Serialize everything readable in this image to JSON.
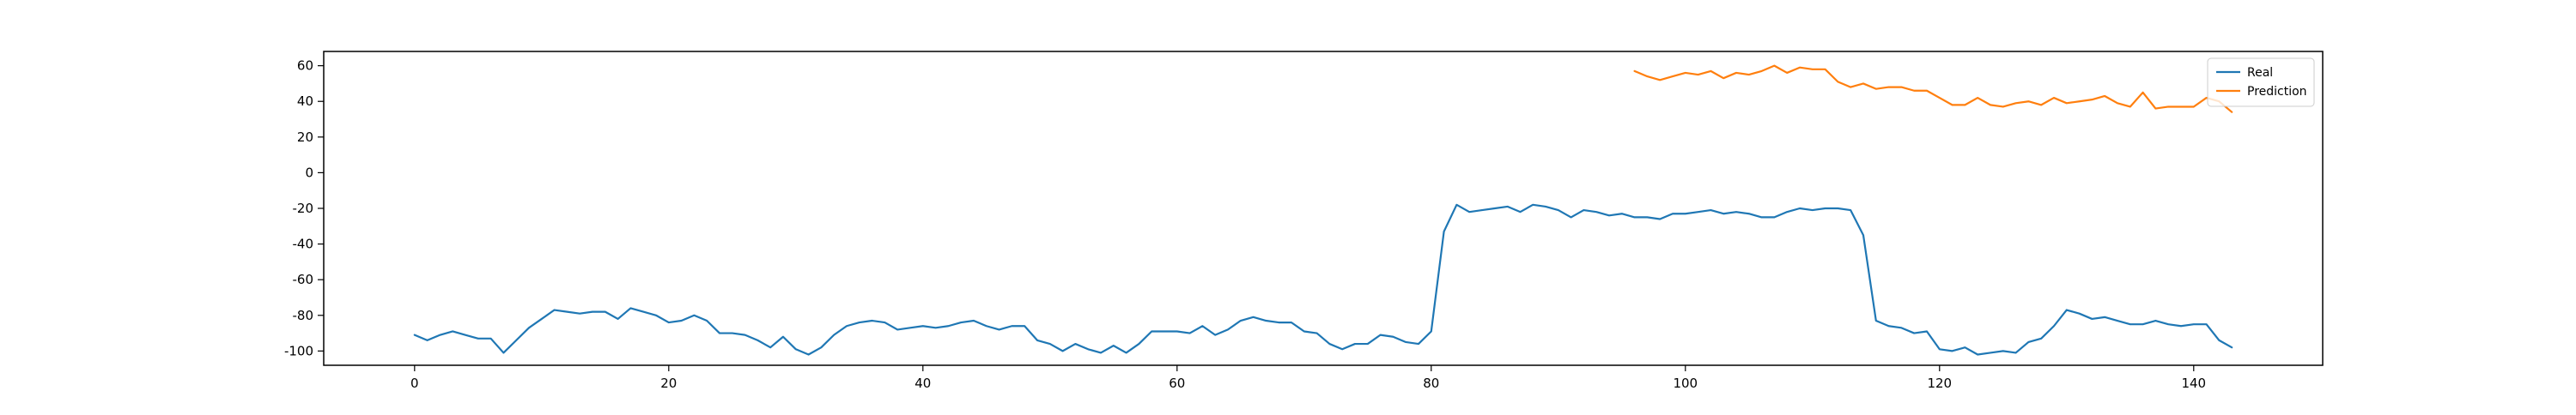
{
  "chart_data": {
    "type": "line",
    "title": "",
    "xlabel": "",
    "ylabel": "",
    "xlim": [
      -7.15,
      150.15
    ],
    "ylim": [
      -108,
      68
    ],
    "xticks": [
      0,
      20,
      40,
      60,
      80,
      100,
      120,
      140
    ],
    "yticks": [
      -100,
      -80,
      -60,
      -40,
      -20,
      0,
      20,
      40,
      60
    ],
    "grid": false,
    "legend": {
      "placement": "top-right",
      "entries": [
        "Real",
        "Prediction"
      ]
    },
    "series": [
      {
        "name": "Real",
        "color": "#1f77b4",
        "x": [
          0,
          1,
          2,
          3,
          4,
          5,
          6,
          7,
          8,
          9,
          10,
          11,
          12,
          13,
          14,
          15,
          16,
          17,
          18,
          19,
          20,
          21,
          22,
          23,
          24,
          25,
          26,
          27,
          28,
          29,
          30,
          31,
          32,
          33,
          34,
          35,
          36,
          37,
          38,
          39,
          40,
          41,
          42,
          43,
          44,
          45,
          46,
          47,
          48,
          49,
          50,
          51,
          52,
          53,
          54,
          55,
          56,
          57,
          58,
          59,
          60,
          61,
          62,
          63,
          64,
          65,
          66,
          67,
          68,
          69,
          70,
          71,
          72,
          73,
          74,
          75,
          76,
          77,
          78,
          79,
          80,
          81,
          82,
          83,
          84,
          85,
          86,
          87,
          88,
          89,
          90,
          91,
          92,
          93,
          94,
          95,
          96,
          97,
          98,
          99,
          100,
          101,
          102,
          103,
          104,
          105,
          106,
          107,
          108,
          109,
          110,
          111,
          112,
          113,
          114,
          115,
          116,
          117,
          118,
          119,
          120,
          121,
          122,
          123,
          124,
          125,
          126,
          127,
          128,
          129,
          130,
          131,
          132,
          133,
          134,
          135,
          136,
          137,
          138,
          139,
          140,
          141,
          142,
          143
        ],
        "values": [
          -91,
          -94,
          -91,
          -89,
          -91,
          -93,
          -93,
          -101,
          -94,
          -87,
          -82,
          -77,
          -78,
          -79,
          -78,
          -78,
          -82,
          -76,
          -78,
          -80,
          -84,
          -83,
          -80,
          -83,
          -90,
          -90,
          -91,
          -94,
          -98,
          -92,
          -99,
          -102,
          -98,
          -91,
          -86,
          -84,
          -83,
          -84,
          -88,
          -87,
          -86,
          -87,
          -86,
          -84,
          -83,
          -86,
          -88,
          -86,
          -86,
          -94,
          -96,
          -100,
          -96,
          -99,
          -101,
          -97,
          -101,
          -96,
          -89,
          -89,
          -89,
          -90,
          -86,
          -91,
          -88,
          -83,
          -81,
          -83,
          -84,
          -84,
          -89,
          -90,
          -96,
          -99,
          -96,
          -96,
          -91,
          -92,
          -95,
          -96,
          -89,
          -33,
          -18,
          -22,
          -21,
          -20,
          -19,
          -22,
          -18,
          -19,
          -21,
          -25,
          -21,
          -22,
          -24,
          -23,
          -25,
          -25,
          -26,
          -23,
          -23,
          -22,
          -21,
          -23,
          -22,
          -23,
          -25,
          -25,
          -22,
          -20,
          -21,
          -20,
          -20,
          -21,
          -35,
          -83,
          -86,
          -87,
          -90,
          -89,
          -99,
          -100,
          -98,
          -102,
          -101,
          -100,
          -101,
          -95,
          -93,
          -86,
          -77,
          -79,
          -82,
          -81,
          -83,
          -85,
          -85,
          -83,
          -85,
          -86,
          -85,
          -85,
          -94,
          -98
        ]
      },
      {
        "name": "Prediction",
        "color": "#ff7f0e",
        "x": [
          96,
          97,
          98,
          99,
          100,
          101,
          102,
          103,
          104,
          105,
          106,
          107,
          108,
          109,
          110,
          111,
          112,
          113,
          114,
          115,
          116,
          117,
          118,
          119,
          120,
          121,
          122,
          123,
          124,
          125,
          126,
          127,
          128,
          129,
          130,
          131,
          132,
          133,
          134,
          135,
          136,
          137,
          138,
          139,
          140,
          141,
          142,
          143
        ],
        "values": [
          57,
          54,
          52,
          54,
          56,
          55,
          57,
          53,
          56,
          55,
          57,
          60,
          56,
          59,
          58,
          58,
          51,
          48,
          50,
          47,
          48,
          48,
          46,
          46,
          42,
          38,
          38,
          42,
          38,
          37,
          39,
          40,
          38,
          42,
          39,
          40,
          41,
          43,
          39,
          37,
          45,
          36,
          37,
          37,
          37,
          42,
          40,
          34
        ]
      }
    ]
  }
}
